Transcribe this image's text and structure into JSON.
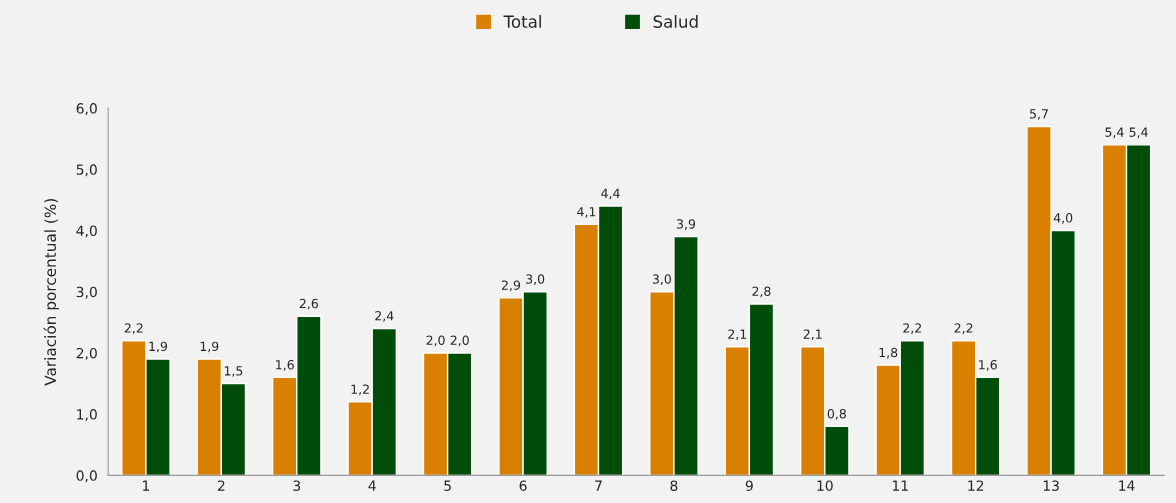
{
  "chart_data": {
    "type": "bar",
    "ylabel": "Variación porcentual (%)",
    "categories": [
      "1",
      "2",
      "3",
      "4",
      "5",
      "6",
      "7",
      "8",
      "9",
      "10",
      "11",
      "12",
      "13",
      "14"
    ],
    "series": [
      {
        "name": "Total",
        "color": "#d98000",
        "values": [
          2.2,
          1.9,
          1.6,
          1.2,
          2.0,
          2.9,
          4.1,
          3.0,
          2.1,
          2.1,
          1.8,
          2.2,
          5.7,
          5.4
        ],
        "value_labels": [
          "2,2",
          "1,9",
          "1,6",
          "1,2",
          "2,0",
          "2,9",
          "4,1",
          "3,0",
          "2,1",
          "2,1",
          "1,8",
          "2,2",
          "5,7",
          "5,4"
        ]
      },
      {
        "name": "Salud",
        "color": "#004d0a",
        "values": [
          1.9,
          1.5,
          2.6,
          2.4,
          2.0,
          3.0,
          4.4,
          3.9,
          2.8,
          0.8,
          2.2,
          1.6,
          4.0,
          5.4
        ],
        "value_labels": [
          "1,9",
          "1,5",
          "2,6",
          "2,4",
          "2,0",
          "3,0",
          "4,4",
          "3,9",
          "2,8",
          "0,8",
          "2,2",
          "1,6",
          "4,0",
          "5,4"
        ]
      }
    ],
    "ylim": [
      0,
      6
    ],
    "yticks": [
      {
        "value": 0,
        "label": "0,0"
      },
      {
        "value": 1,
        "label": "1,0"
      },
      {
        "value": 2,
        "label": "2,0"
      },
      {
        "value": 3,
        "label": "3,0"
      },
      {
        "value": 4,
        "label": "4,0"
      },
      {
        "value": 5,
        "label": "5,0"
      },
      {
        "value": 6,
        "label": "6,0"
      }
    ],
    "legend": "top",
    "grid": false
  }
}
